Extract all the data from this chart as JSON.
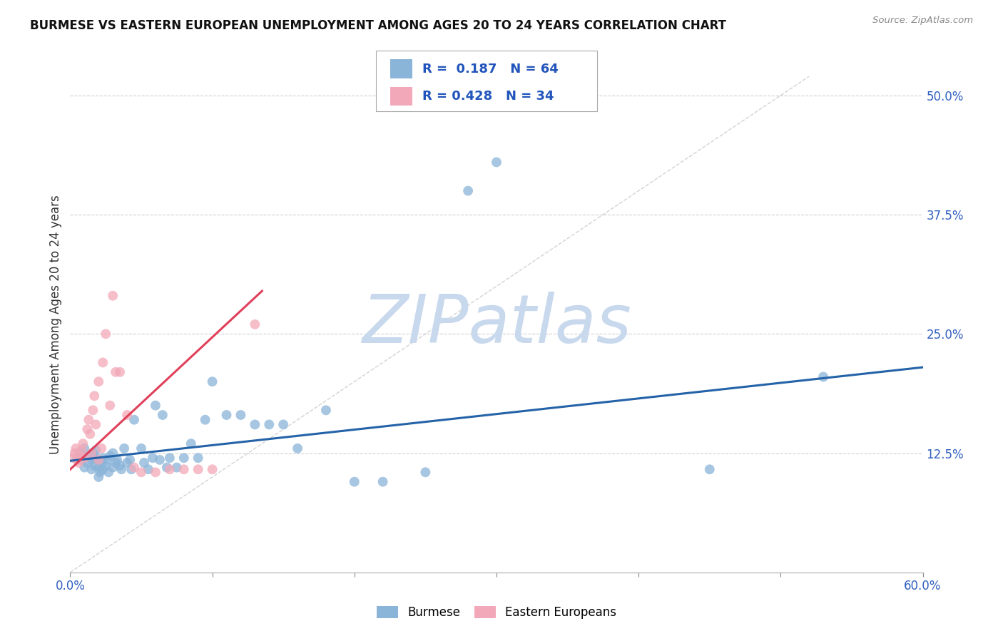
{
  "title": "BURMESE VS EASTERN EUROPEAN UNEMPLOYMENT AMONG AGES 20 TO 24 YEARS CORRELATION CHART",
  "source": "Source: ZipAtlas.com",
  "ylabel": "Unemployment Among Ages 20 to 24 years",
  "xlim": [
    0.0,
    0.6
  ],
  "ylim": [
    0.0,
    0.52
  ],
  "xtick_vals": [
    0.0,
    0.1,
    0.2,
    0.3,
    0.4,
    0.5,
    0.6
  ],
  "xticklabels": [
    "0.0%",
    "",
    "",
    "",
    "",
    "",
    "60.0%"
  ],
  "ytick_vals": [
    0.125,
    0.25,
    0.375,
    0.5
  ],
  "yticklabels": [
    "12.5%",
    "25.0%",
    "37.5%",
    "50.0%"
  ],
  "burmese_R": 0.187,
  "burmese_N": 64,
  "eastern_R": 0.428,
  "eastern_N": 34,
  "burmese_color": "#8ab4d8",
  "eastern_color": "#f2a8b8",
  "burmese_line_color": "#2563a8",
  "eastern_line_color": "#e0405a",
  "ref_line_color": "#c8c8c8",
  "watermark_color": "#c8d8ed",
  "watermark_text": "ZIPatlas",
  "burmese_x": [
    0.005,
    0.007,
    0.008,
    0.01,
    0.01,
    0.012,
    0.013,
    0.015,
    0.015,
    0.016,
    0.017,
    0.018,
    0.018,
    0.02,
    0.02,
    0.02,
    0.021,
    0.022,
    0.023,
    0.023,
    0.025,
    0.026,
    0.027,
    0.028,
    0.03,
    0.03,
    0.032,
    0.033,
    0.035,
    0.036,
    0.038,
    0.04,
    0.042,
    0.043,
    0.045,
    0.05,
    0.052,
    0.055,
    0.058,
    0.06,
    0.063,
    0.065,
    0.068,
    0.07,
    0.075,
    0.08,
    0.085,
    0.09,
    0.095,
    0.1,
    0.11,
    0.12,
    0.13,
    0.14,
    0.15,
    0.16,
    0.18,
    0.2,
    0.22,
    0.25,
    0.28,
    0.3,
    0.45,
    0.53
  ],
  "burmese_y": [
    0.12,
    0.125,
    0.118,
    0.11,
    0.13,
    0.115,
    0.122,
    0.108,
    0.118,
    0.125,
    0.112,
    0.12,
    0.128,
    0.1,
    0.11,
    0.118,
    0.105,
    0.115,
    0.108,
    0.12,
    0.112,
    0.118,
    0.105,
    0.122,
    0.11,
    0.125,
    0.115,
    0.118,
    0.112,
    0.108,
    0.13,
    0.115,
    0.118,
    0.108,
    0.16,
    0.13,
    0.115,
    0.108,
    0.12,
    0.175,
    0.118,
    0.165,
    0.11,
    0.12,
    0.11,
    0.12,
    0.135,
    0.12,
    0.16,
    0.2,
    0.165,
    0.165,
    0.155,
    0.155,
    0.155,
    0.13,
    0.17,
    0.095,
    0.095,
    0.105,
    0.4,
    0.43,
    0.108,
    0.205
  ],
  "eastern_x": [
    0.002,
    0.003,
    0.004,
    0.005,
    0.006,
    0.007,
    0.008,
    0.009,
    0.01,
    0.012,
    0.013,
    0.014,
    0.015,
    0.016,
    0.017,
    0.018,
    0.02,
    0.02,
    0.022,
    0.023,
    0.025,
    0.028,
    0.03,
    0.032,
    0.035,
    0.04,
    0.045,
    0.05,
    0.06,
    0.07,
    0.08,
    0.09,
    0.1,
    0.13
  ],
  "eastern_y": [
    0.12,
    0.125,
    0.13,
    0.118,
    0.115,
    0.122,
    0.128,
    0.135,
    0.12,
    0.15,
    0.16,
    0.145,
    0.125,
    0.17,
    0.185,
    0.155,
    0.118,
    0.2,
    0.13,
    0.22,
    0.25,
    0.175,
    0.29,
    0.21,
    0.21,
    0.165,
    0.11,
    0.105,
    0.105,
    0.108,
    0.108,
    0.108,
    0.108,
    0.26
  ],
  "burmese_trend_x": [
    0.0,
    0.6
  ],
  "burmese_trend_y": [
    0.117,
    0.215
  ],
  "eastern_trend_x": [
    0.0,
    0.135
  ],
  "eastern_trend_y": [
    0.108,
    0.295
  ],
  "ref_line_x": [
    0.0,
    0.52
  ],
  "ref_line_y": [
    0.0,
    0.52
  ]
}
